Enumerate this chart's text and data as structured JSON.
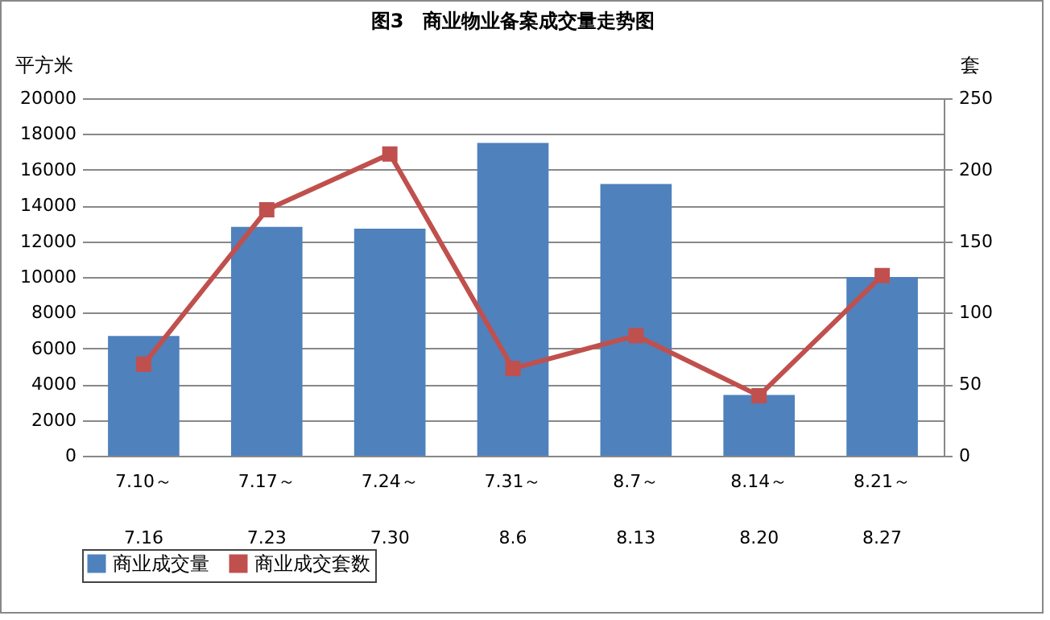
{
  "chart_data": {
    "type": "bar",
    "title": "图3　商业物业备案成交量走势图",
    "ylabel": "平方米",
    "y2label": "套",
    "categories": [
      "7.10～\n7.16",
      "7.17～\n7.23",
      "7.24～\n7.30",
      "7.31～\n8.6",
      "8.7～\n8.13",
      "8.14～\n8.20",
      "8.21～\n8.27"
    ],
    "series": [
      {
        "name": "商业成交量",
        "color": "#4f81bd",
        "values": [
          6700,
          12800,
          12700,
          17500,
          15200,
          3400,
          10000
        ]
      },
      {
        "name": "商业成交套数",
        "type": "line",
        "axis": "y2",
        "color": "#c0504d",
        "values": [
          64,
          172,
          211,
          61,
          84,
          42,
          126
        ]
      }
    ],
    "ylim": [
      0,
      20000
    ],
    "yticks": [
      0,
      2000,
      4000,
      6000,
      8000,
      10000,
      12000,
      14000,
      16000,
      18000,
      20000
    ],
    "y2lim": [
      0,
      250
    ],
    "y2ticks": [
      0,
      50,
      100,
      150,
      200,
      250
    ],
    "grid": "y",
    "legend": "bottom",
    "marker": "square"
  }
}
